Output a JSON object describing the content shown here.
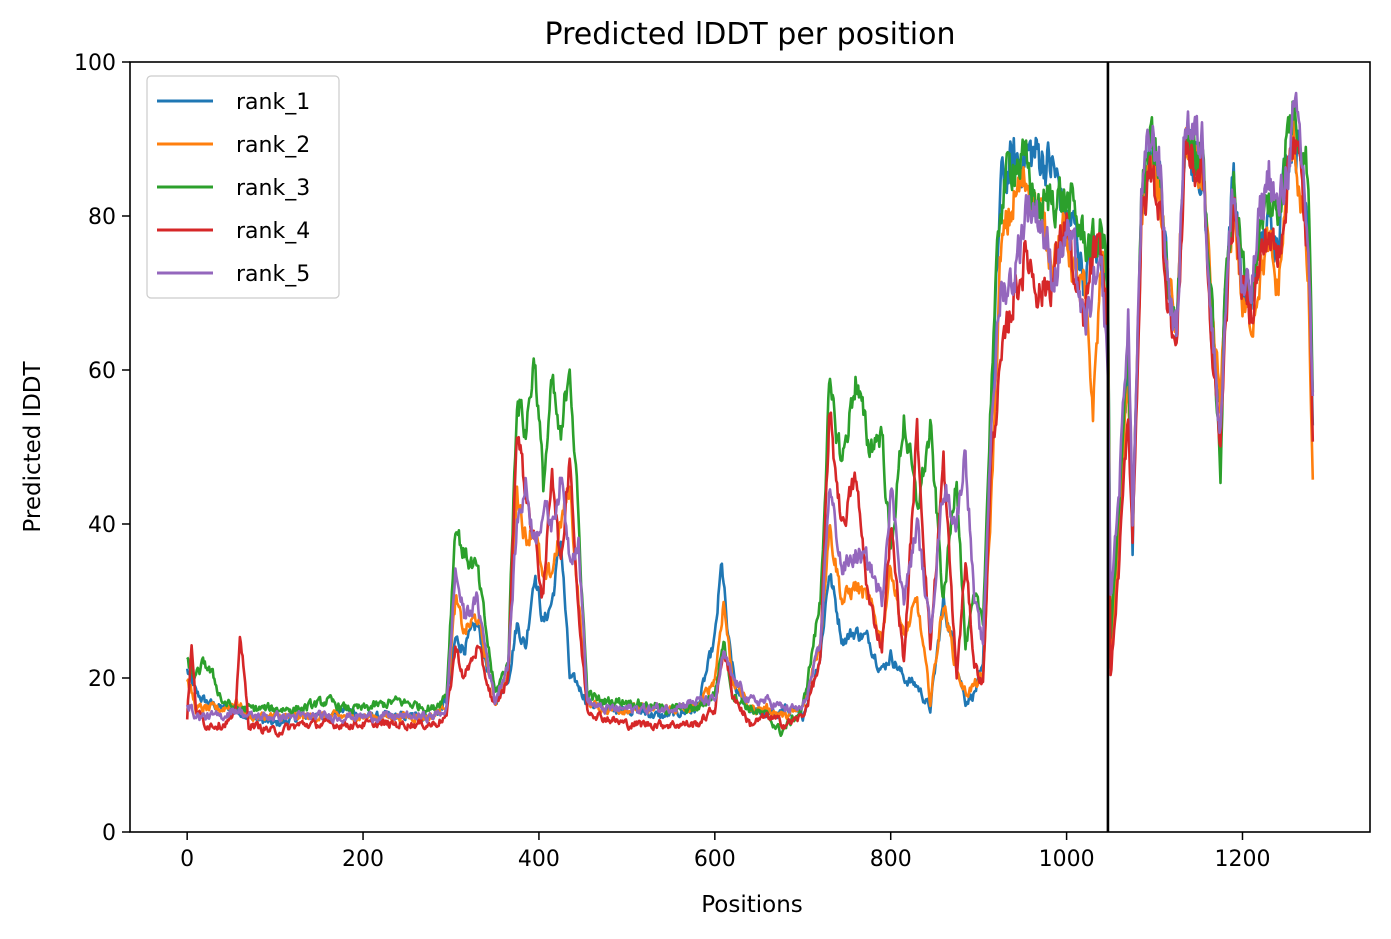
{
  "chart_data": {
    "type": "line",
    "title": "Predicted lDDT per position",
    "xlabel": "Positions",
    "ylabel": "Predicted lDDT",
    "xlim": [
      -65,
      1345
    ],
    "ylim": [
      0,
      100
    ],
    "xticks": [
      0,
      200,
      400,
      600,
      800,
      1000,
      1200
    ],
    "yticks": [
      0,
      20,
      40,
      60,
      80,
      100
    ],
    "legend_position": "upper-left",
    "annotations": [
      {
        "type": "vertical-line",
        "x": 1047,
        "color": "#000000"
      }
    ],
    "n_positions": 1281,
    "series": [
      {
        "name": "rank_1",
        "color": "#1f77b4",
        "x": [
          0,
          10,
          20,
          40,
          55,
          70,
          100,
          130,
          160,
          180,
          200,
          240,
          280,
          295,
          305,
          315,
          330,
          350,
          365,
          375,
          385,
          395,
          405,
          415,
          425,
          435,
          445,
          455,
          470,
          500,
          540,
          580,
          600,
          608,
          615,
          625,
          640,
          660,
          680,
          700,
          720,
          730,
          745,
          760,
          775,
          790,
          800,
          815,
          830,
          845,
          860,
          875,
          885,
          895,
          905,
          915,
          925,
          940,
          955,
          970,
          985,
          1000,
          1010,
          1020,
          1030,
          1040,
          1047,
          1050,
          1060,
          1070,
          1075,
          1085,
          1095,
          1105,
          1115,
          1125,
          1135,
          1145,
          1155,
          1165,
          1175,
          1180,
          1190,
          1200,
          1210,
          1220,
          1230,
          1240,
          1250,
          1258,
          1265,
          1270,
          1275,
          1280
        ],
        "y": [
          21,
          18,
          17,
          16,
          16,
          15,
          14,
          15,
          15,
          16,
          15,
          15,
          15,
          17,
          25,
          24,
          27,
          17,
          20,
          27,
          24,
          34,
          27,
          30,
          38,
          20,
          19,
          17,
          16,
          16,
          15,
          16,
          25,
          35,
          25,
          18,
          16,
          15,
          16,
          15,
          23,
          34,
          25,
          26,
          25,
          21,
          23,
          20,
          19,
          16,
          30,
          22,
          17,
          18,
          21,
          55,
          84,
          87,
          88,
          88,
          86,
          80,
          78,
          72,
          76,
          74,
          72,
          22,
          40,
          62,
          36,
          80,
          88,
          86,
          72,
          63,
          92,
          86,
          88,
          64,
          56,
          70,
          86,
          70,
          68,
          75,
          79,
          78,
          88,
          91,
          88,
          86,
          80,
          53
        ]
      },
      {
        "name": "rank_2",
        "color": "#ff7f0e",
        "x": [
          0,
          10,
          20,
          40,
          55,
          70,
          100,
          130,
          160,
          180,
          200,
          240,
          280,
          295,
          305,
          315,
          330,
          350,
          365,
          375,
          385,
          395,
          405,
          415,
          425,
          435,
          445,
          455,
          470,
          500,
          540,
          580,
          600,
          610,
          620,
          640,
          660,
          680,
          700,
          720,
          730,
          745,
          760,
          775,
          790,
          800,
          815,
          830,
          845,
          860,
          875,
          885,
          895,
          905,
          915,
          925,
          940,
          955,
          970,
          985,
          1000,
          1010,
          1020,
          1030,
          1040,
          1047,
          1050,
          1060,
          1070,
          1075,
          1085,
          1095,
          1105,
          1115,
          1125,
          1135,
          1145,
          1155,
          1165,
          1175,
          1180,
          1190,
          1200,
          1210,
          1220,
          1230,
          1240,
          1250,
          1258,
          1265,
          1270,
          1275,
          1280
        ],
        "y": [
          20,
          16,
          16,
          16,
          17,
          15,
          15,
          15,
          15,
          15,
          15,
          15,
          15,
          17,
          30,
          26,
          28,
          17,
          20,
          45,
          38,
          40,
          32,
          34,
          40,
          45,
          30,
          17,
          16,
          16,
          16,
          16,
          20,
          30,
          20,
          16,
          16,
          15,
          16,
          25,
          40,
          30,
          32,
          30,
          25,
          35,
          25,
          30,
          17,
          30,
          21,
          18,
          19,
          20,
          45,
          75,
          82,
          85,
          80,
          75,
          78,
          72,
          70,
          55,
          75,
          70,
          22,
          40,
          60,
          38,
          80,
          86,
          84,
          72,
          65,
          90,
          86,
          86,
          66,
          56,
          68,
          82,
          68,
          66,
          73,
          76,
          70,
          82,
          90,
          84,
          80,
          70,
          45
        ]
      },
      {
        "name": "rank_3",
        "color": "#2ca02c",
        "x": [
          0,
          10,
          20,
          30,
          40,
          55,
          70,
          100,
          130,
          160,
          180,
          200,
          240,
          280,
          295,
          305,
          315,
          330,
          350,
          365,
          375,
          385,
          395,
          405,
          415,
          425,
          435,
          445,
          455,
          470,
          500,
          540,
          580,
          600,
          610,
          620,
          640,
          660,
          675,
          700,
          720,
          730,
          745,
          760,
          775,
          790,
          800,
          815,
          830,
          845,
          860,
          875,
          885,
          895,
          905,
          915,
          925,
          940,
          955,
          970,
          985,
          1000,
          1010,
          1020,
          1030,
          1040,
          1047,
          1050,
          1060,
          1070,
          1075,
          1085,
          1095,
          1105,
          1115,
          1125,
          1135,
          1145,
          1155,
          1165,
          1175,
          1180,
          1190,
          1200,
          1210,
          1220,
          1230,
          1240,
          1250,
          1258,
          1265,
          1270,
          1275,
          1280
        ],
        "y": [
          22,
          20,
          22,
          20,
          17,
          16,
          16,
          16,
          16,
          17,
          16,
          16,
          17,
          16,
          18,
          40,
          36,
          34,
          18,
          22,
          57,
          52,
          62,
          45,
          58,
          50,
          62,
          40,
          18,
          17,
          17,
          16,
          16,
          18,
          25,
          18,
          16,
          15,
          13,
          16,
          30,
          57,
          48,
          59,
          50,
          52,
          36,
          54,
          42,
          52,
          30,
          47,
          24,
          30,
          28,
          60,
          82,
          88,
          86,
          80,
          83,
          82,
          80,
          77,
          76,
          78,
          72,
          25,
          42,
          63,
          40,
          82,
          89,
          86,
          71,
          65,
          93,
          88,
          88,
          68,
          46,
          70,
          85,
          73,
          71,
          78,
          82,
          80,
          90,
          94,
          92,
          88,
          86,
          58
        ]
      },
      {
        "name": "rank_4",
        "color": "#d62728",
        "x": [
          0,
          5,
          10,
          20,
          40,
          55,
          60,
          70,
          100,
          130,
          160,
          180,
          200,
          240,
          280,
          295,
          305,
          315,
          330,
          350,
          365,
          375,
          385,
          395,
          405,
          415,
          425,
          435,
          445,
          455,
          470,
          500,
          540,
          580,
          600,
          610,
          620,
          640,
          660,
          680,
          700,
          720,
          730,
          745,
          760,
          775,
          790,
          800,
          815,
          830,
          845,
          860,
          875,
          885,
          895,
          905,
          915,
          925,
          940,
          955,
          970,
          985,
          1000,
          1010,
          1020,
          1030,
          1040,
          1047,
          1050,
          1060,
          1070,
          1075,
          1085,
          1095,
          1105,
          1115,
          1125,
          1135,
          1145,
          1155,
          1165,
          1175,
          1180,
          1190,
          1200,
          1210,
          1220,
          1230,
          1240,
          1250,
          1258,
          1265,
          1270,
          1275,
          1280
        ],
        "y": [
          15,
          24,
          16,
          14,
          14,
          15,
          26,
          14,
          13,
          14,
          14,
          14,
          14,
          14,
          14,
          15,
          24,
          20,
          24,
          16,
          20,
          53,
          44,
          38,
          30,
          48,
          34,
          50,
          28,
          16,
          15,
          14,
          14,
          14,
          16,
          24,
          18,
          14,
          15,
          14,
          15,
          22,
          54,
          40,
          46,
          30,
          24,
          40,
          22,
          52,
          24,
          48,
          20,
          35,
          22,
          19,
          50,
          60,
          70,
          75,
          70,
          72,
          80,
          70,
          66,
          75,
          74,
          65,
          20,
          35,
          55,
          38,
          78,
          86,
          82,
          70,
          62,
          90,
          86,
          86,
          62,
          50,
          66,
          82,
          70,
          68,
          74,
          78,
          74,
          84,
          92,
          86,
          80,
          74,
          52
        ]
      },
      {
        "name": "rank_5",
        "color": "#9467bd",
        "x": [
          0,
          10,
          20,
          40,
          55,
          70,
          100,
          130,
          160,
          180,
          200,
          240,
          280,
          295,
          305,
          315,
          330,
          350,
          365,
          375,
          385,
          395,
          405,
          415,
          425,
          435,
          445,
          455,
          470,
          500,
          540,
          580,
          600,
          610,
          620,
          640,
          660,
          680,
          700,
          720,
          730,
          745,
          760,
          775,
          790,
          800,
          815,
          830,
          845,
          860,
          875,
          885,
          895,
          905,
          915,
          925,
          940,
          955,
          970,
          985,
          1000,
          1010,
          1020,
          1030,
          1040,
          1047,
          1050,
          1060,
          1070,
          1075,
          1085,
          1095,
          1105,
          1115,
          1125,
          1135,
          1145,
          1155,
          1165,
          1175,
          1180,
          1190,
          1200,
          1210,
          1220,
          1230,
          1240,
          1250,
          1258,
          1265,
          1270,
          1275,
          1280
        ],
        "y": [
          17,
          15,
          15,
          15,
          16,
          15,
          15,
          15,
          15,
          15,
          15,
          15,
          15,
          16,
          34,
          28,
          30,
          17,
          22,
          40,
          45,
          38,
          42,
          40,
          46,
          36,
          38,
          17,
          16,
          16,
          16,
          17,
          17,
          23,
          20,
          17,
          17,
          16,
          16,
          24,
          45,
          34,
          36,
          35,
          30,
          45,
          30,
          40,
          26,
          45,
          40,
          50,
          30,
          24,
          55,
          70,
          72,
          82,
          80,
          72,
          78,
          74,
          65,
          70,
          72,
          60,
          30,
          45,
          68,
          40,
          82,
          90,
          88,
          72,
          64,
          94,
          90,
          90,
          66,
          52,
          68,
          84,
          70,
          70,
          80,
          86,
          80,
          86,
          92,
          90,
          84,
          76,
          55
        ]
      }
    ]
  }
}
